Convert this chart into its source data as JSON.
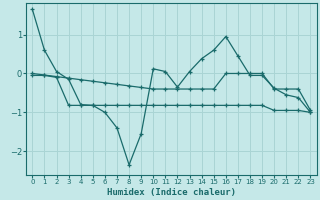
{
  "title": "",
  "xlabel": "Humidex (Indice chaleur)",
  "ylabel": "",
  "bg_color": "#c5e8e8",
  "line_color": "#1a6b6b",
  "grid_color": "#aad4d4",
  "xlim": [
    -0.5,
    23.5
  ],
  "ylim": [
    -2.6,
    1.8
  ],
  "xticks": [
    0,
    1,
    2,
    3,
    4,
    5,
    6,
    7,
    8,
    9,
    10,
    11,
    12,
    13,
    14,
    15,
    16,
    17,
    18,
    19,
    20,
    21,
    22,
    23
  ],
  "yticks": [
    -2,
    -1,
    0,
    1
  ],
  "line1_x": [
    0,
    1,
    2,
    3,
    4,
    5,
    6,
    7,
    8,
    9,
    10,
    11,
    12,
    13,
    14,
    15,
    16,
    17,
    18,
    19,
    20,
    21,
    22,
    23
  ],
  "line1_y": [
    1.65,
    0.6,
    0.05,
    -0.15,
    -0.8,
    -0.82,
    -1.0,
    -1.4,
    -2.35,
    -1.55,
    0.12,
    0.05,
    -0.35,
    0.05,
    0.38,
    0.6,
    0.95,
    0.45,
    -0.05,
    -0.05,
    -0.38,
    -0.55,
    -0.62,
    -1.0
  ],
  "line2_x": [
    0,
    1,
    2,
    3,
    4,
    5,
    6,
    7,
    8,
    9,
    10,
    11,
    12,
    13,
    14,
    15,
    16,
    17,
    18,
    19,
    20,
    21,
    22,
    23
  ],
  "line2_y": [
    0.0,
    -0.04,
    -0.08,
    -0.12,
    -0.16,
    -0.2,
    -0.24,
    -0.28,
    -0.32,
    -0.36,
    -0.4,
    -0.4,
    -0.4,
    -0.4,
    -0.4,
    -0.4,
    0.0,
    0.0,
    0.0,
    0.0,
    -0.4,
    -0.4,
    -0.4,
    -0.95
  ],
  "line3_x": [
    0,
    1,
    2,
    3,
    4,
    5,
    6,
    7,
    8,
    9,
    10,
    11,
    12,
    13,
    14,
    15,
    16,
    17,
    18,
    19,
    20,
    21,
    22,
    23
  ],
  "line3_y": [
    -0.05,
    -0.05,
    -0.1,
    -0.82,
    -0.82,
    -0.82,
    -0.82,
    -0.82,
    -0.82,
    -0.82,
    -0.82,
    -0.82,
    -0.82,
    -0.82,
    -0.82,
    -0.82,
    -0.82,
    -0.82,
    -0.82,
    -0.82,
    -0.95,
    -0.95,
    -0.95,
    -1.0
  ]
}
